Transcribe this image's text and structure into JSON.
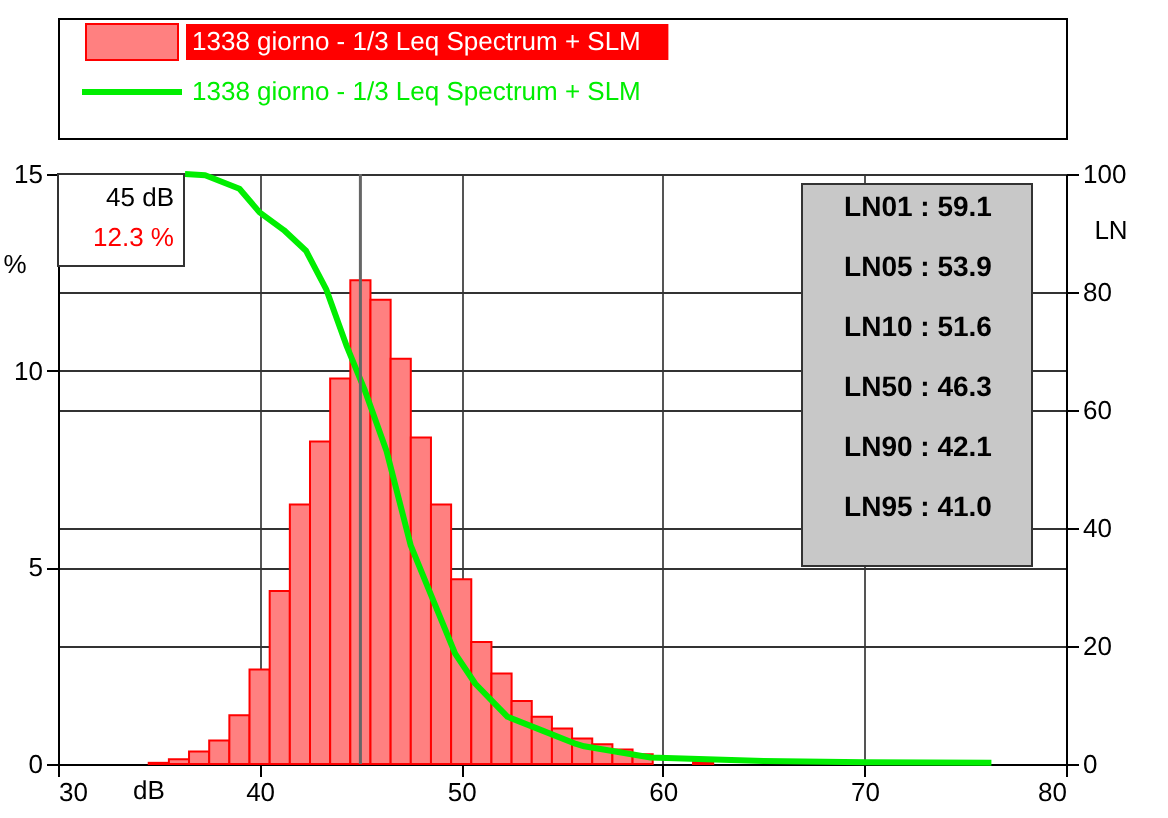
{
  "chart_data": {
    "type": "histogram",
    "bins": [
      34.5,
      35.5,
      36.5,
      37.5,
      38.5,
      39.5,
      40.5,
      41.5,
      42.5,
      43.5,
      44.5,
      45.5,
      46.5,
      47.5,
      48.5,
      49.5,
      50.5,
      51.5,
      52.5,
      53.5,
      54.5,
      55.5,
      56.5,
      57.5,
      58.5,
      59.5,
      60.5,
      61.5,
      62.5,
      63.5,
      64.5
    ],
    "series": [
      {
        "name": "1338 giorno - 1/3 Leq Spectrum + SLM",
        "color": "#ff8080",
        "values": [
          0.03,
          0.12,
          0.32,
          0.6,
          1.24,
          2.4,
          4.4,
          6.6,
          8.2,
          9.8,
          12.3,
          11.8,
          10.3,
          8.3,
          6.6,
          4.7,
          3.1,
          2.3,
          1.6,
          1.2,
          0.9,
          0.65,
          0.5,
          0.37,
          0.25,
          null,
          null,
          0.05,
          null,
          null
        ]
      },
      {
        "name": "1338 giorno - 1/3 Leq Spectrum + SLM",
        "type": "line",
        "axis": "y2",
        "color": "#00ee00",
        "x": [
          36.3,
          37.3,
          39,
          40,
          41.2,
          42.3,
          43.3,
          44.3,
          45.2,
          46.3,
          47.5,
          48.7,
          49.7,
          50.7,
          52.3,
          54,
          55.7,
          56.1,
          59.4,
          65,
          70,
          76.3
        ],
        "values": [
          100,
          99.8,
          97.5,
          93.5,
          90.5,
          87,
          80.5,
          71,
          63.5,
          53,
          37,
          27,
          18.7,
          13.6,
          8,
          5.7,
          3.4,
          3,
          1.1,
          0.5,
          0.3,
          0.2
        ]
      }
    ],
    "xlabel": "dB",
    "ylabel": "%",
    "y2label": "LN",
    "xlim": [
      30,
      80
    ],
    "xticks": [
      30,
      40,
      50,
      60,
      70,
      80
    ],
    "ylim": [
      0,
      15
    ],
    "yticks": [
      0,
      5,
      10,
      15
    ],
    "y2lim": [
      0,
      100
    ],
    "y2ticks": [
      0,
      20,
      40,
      60,
      80,
      100
    ],
    "grid": true,
    "legend": "top",
    "ref_lines": [
      {
        "axis": "x",
        "value": 45,
        "color": "#666666"
      }
    ],
    "annotations": [
      "45 dB",
      "12.3 %",
      "LN01 : 59.1",
      "LN05 : 53.9",
      "LN10 : 51.6",
      "LN50 : 46.3",
      "LN90 : 42.1",
      "LN95 : 41.0"
    ]
  }
}
